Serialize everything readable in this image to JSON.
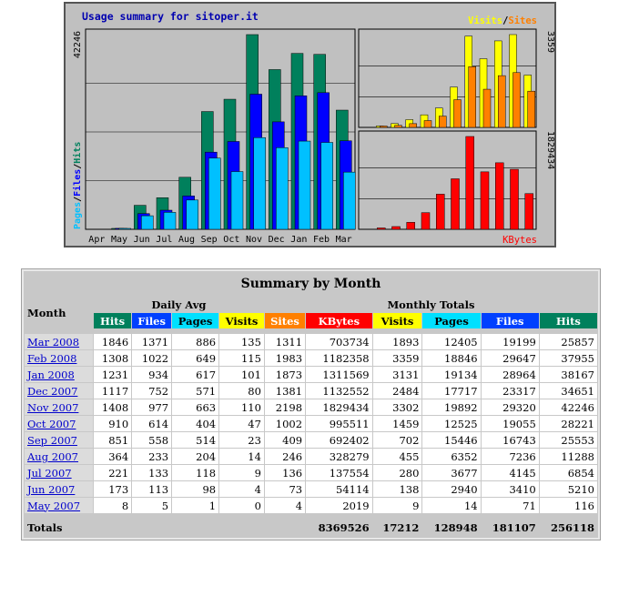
{
  "chart_title": "Usage summary for sitoper.it",
  "chart_data": [
    {
      "type": "bar",
      "categories": [
        "Apr",
        "May",
        "Jun",
        "Jul",
        "Aug",
        "Sep",
        "Oct",
        "Nov",
        "Dec",
        "Jan",
        "Feb",
        "Mar"
      ],
      "ymax_label": "42246",
      "ylabel_parts": [
        "Pages",
        "Files",
        "Hits"
      ],
      "series": [
        {
          "name": "Hits",
          "color": "#00805c",
          "values": [
            0,
            116,
            5210,
            6854,
            11288,
            25553,
            28221,
            42246,
            34651,
            38167,
            37955,
            25857
          ]
        },
        {
          "name": "Files",
          "color": "#0000ff",
          "values": [
            0,
            71,
            3410,
            4145,
            7236,
            16743,
            19055,
            29320,
            23317,
            28964,
            29647,
            19199
          ]
        },
        {
          "name": "Pages",
          "color": "#00c0ff",
          "values": [
            0,
            14,
            2940,
            3677,
            6352,
            15446,
            12525,
            19892,
            17717,
            19134,
            18846,
            12405
          ]
        }
      ]
    },
    {
      "type": "bar",
      "ymax_label": "3359",
      "legend_parts": [
        "Visits",
        "Sites"
      ],
      "series": [
        {
          "name": "Visits",
          "color": "#ffff00",
          "values": [
            0,
            9,
            138,
            280,
            455,
            702,
            1459,
            3302,
            2484,
            3131,
            3359,
            1893
          ]
        },
        {
          "name": "Sites",
          "color": "#ff8000",
          "values": [
            0,
            4,
            73,
            136,
            246,
            409,
            1002,
            2198,
            1381,
            1873,
            1983,
            1311
          ]
        }
      ]
    },
    {
      "type": "bar",
      "ymax_label": "1829434",
      "legend": "KBytes",
      "series": [
        {
          "name": "KBytes",
          "color": "#ff0000",
          "values": [
            0,
            2019,
            54114,
            137554,
            328279,
            692402,
            995511,
            1829434,
            1132552,
            1311569,
            1182358,
            703734
          ]
        }
      ]
    }
  ],
  "table": {
    "title": "Summary by Month",
    "month_header": "Month",
    "daily_avg_header": "Daily Avg",
    "monthly_totals_header": "Monthly Totals",
    "cols": {
      "hits": "Hits",
      "files": "Files",
      "pages": "Pages",
      "visits": "Visits",
      "sites": "Sites",
      "kbytes": "KBytes",
      "visits2": "Visits",
      "pages2": "Pages",
      "files2": "Files",
      "hits2": "Hits"
    },
    "rows": [
      [
        "Mar 2008",
        "1846",
        "1371",
        "886",
        "135",
        "1311",
        "703734",
        "1893",
        "12405",
        "19199",
        "25857"
      ],
      [
        "Feb 2008",
        "1308",
        "1022",
        "649",
        "115",
        "1983",
        "1182358",
        "3359",
        "18846",
        "29647",
        "37955"
      ],
      [
        "Jan 2008",
        "1231",
        "934",
        "617",
        "101",
        "1873",
        "1311569",
        "3131",
        "19134",
        "28964",
        "38167"
      ],
      [
        "Dec 2007",
        "1117",
        "752",
        "571",
        "80",
        "1381",
        "1132552",
        "2484",
        "17717",
        "23317",
        "34651"
      ],
      [
        "Nov 2007",
        "1408",
        "977",
        "663",
        "110",
        "2198",
        "1829434",
        "3302",
        "19892",
        "29320",
        "42246"
      ],
      [
        "Oct 2007",
        "910",
        "614",
        "404",
        "47",
        "1002",
        "995511",
        "1459",
        "12525",
        "19055",
        "28221"
      ],
      [
        "Sep 2007",
        "851",
        "558",
        "514",
        "23",
        "409",
        "692402",
        "702",
        "15446",
        "16743",
        "25553"
      ],
      [
        "Aug 2007",
        "364",
        "233",
        "204",
        "14",
        "246",
        "328279",
        "455",
        "6352",
        "7236",
        "11288"
      ],
      [
        "Jul 2007",
        "221",
        "133",
        "118",
        "9",
        "136",
        "137554",
        "280",
        "3677",
        "4145",
        "6854"
      ],
      [
        "Jun 2007",
        "173",
        "113",
        "98",
        "4",
        "73",
        "54114",
        "138",
        "2940",
        "3410",
        "5210"
      ],
      [
        "May 2007",
        "8",
        "5",
        "1",
        "0",
        "4",
        "2019",
        "9",
        "14",
        "71",
        "116"
      ]
    ],
    "totals": {
      "label": "Totals",
      "kbytes": "8369526",
      "visits": "17212",
      "pages": "128948",
      "files": "181107",
      "hits": "256118"
    }
  }
}
